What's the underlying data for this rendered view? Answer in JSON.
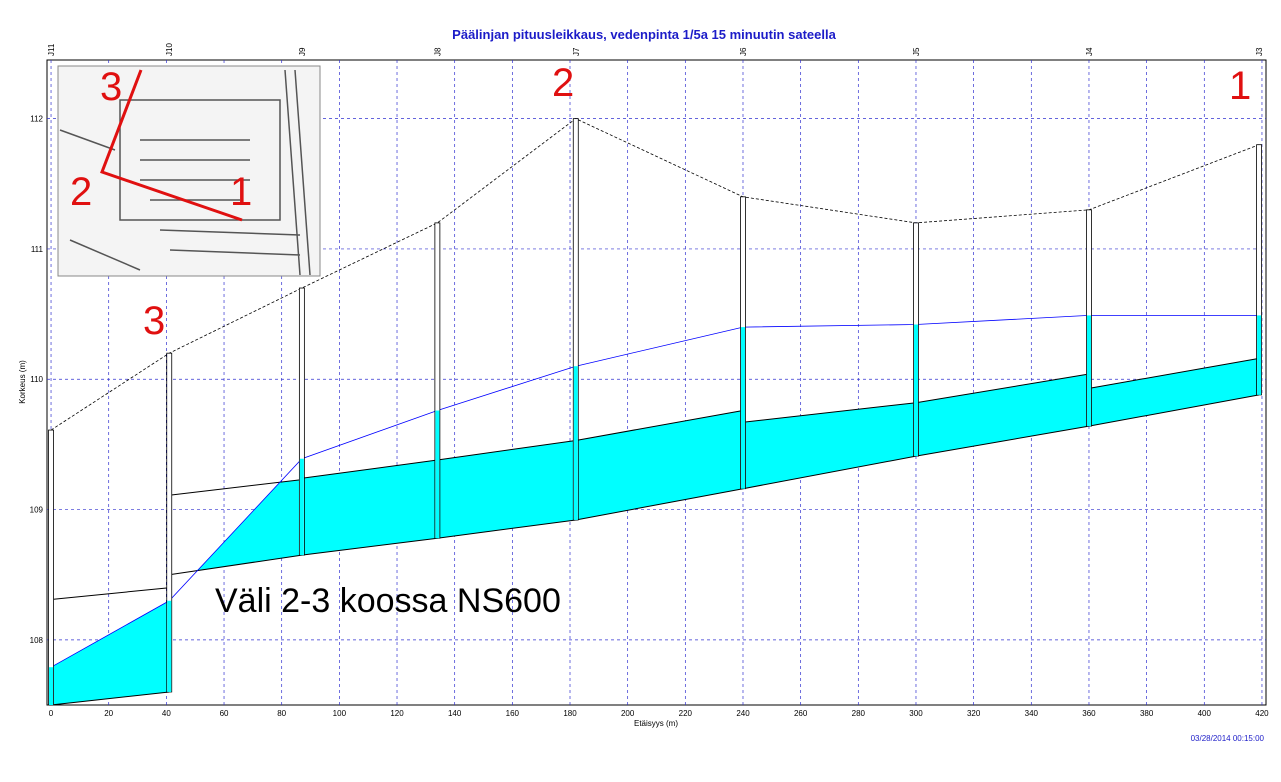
{
  "chart_data": {
    "type": "profile",
    "title": "Päälinjan pituusleikkaus, vedenpinta 1/5a 15 minuutin sateella",
    "x_label": "Etäisyys (m)",
    "y_label": "Korkeus (m)",
    "timestamp": "03/28/2014 00:15:00",
    "annotation": "Väli 2-3 koossa NS600",
    "markers": [
      "1",
      "2",
      "3"
    ],
    "inset_markers": [
      "3",
      "2",
      "1"
    ],
    "xlim": [
      -1.4,
      421.4
    ],
    "ylim": [
      107.5,
      112.45
    ],
    "xticks": [
      0,
      20,
      40,
      60,
      80,
      100,
      120,
      140,
      160,
      180,
      200,
      220,
      240,
      260,
      280,
      300,
      320,
      340,
      360,
      380,
      400,
      420
    ],
    "yticks": [
      108,
      109,
      110,
      111,
      112
    ],
    "grid": true,
    "water_color": "#00ffff",
    "line_color": "#0000ff",
    "nodes": {
      "names": [
        "J11",
        "J10",
        "J9",
        "J8",
        "J7",
        "J6",
        "J5",
        "J4",
        "J3"
      ],
      "x": [
        0,
        41,
        87,
        134,
        182,
        240,
        300,
        360,
        419
      ],
      "invert": [
        107.5,
        107.6,
        108.65,
        108.78,
        108.92,
        109.16,
        109.41,
        109.64,
        109.88
      ],
      "rim": [
        109.61,
        110.2,
        110.7,
        111.2,
        112.0,
        111.4,
        111.2,
        111.3,
        111.8
      ],
      "water": [
        107.79,
        108.3,
        109.39,
        109.76,
        110.1,
        110.4,
        110.42,
        110.49,
        110.49
      ]
    },
    "links": {
      "start_invert": [
        107.5,
        108.5,
        108.65,
        108.78,
        108.92,
        109.16,
        109.41,
        109.64
      ],
      "end_invert": [
        107.6,
        108.65,
        108.78,
        108.92,
        109.16,
        109.41,
        109.64,
        109.88
      ],
      "start_crown": [
        108.31,
        109.11,
        109.24,
        109.38,
        109.53,
        109.67,
        109.82,
        109.93
      ],
      "end_crown": [
        108.4,
        109.23,
        109.38,
        109.53,
        109.76,
        109.82,
        110.04,
        110.16
      ]
    }
  }
}
